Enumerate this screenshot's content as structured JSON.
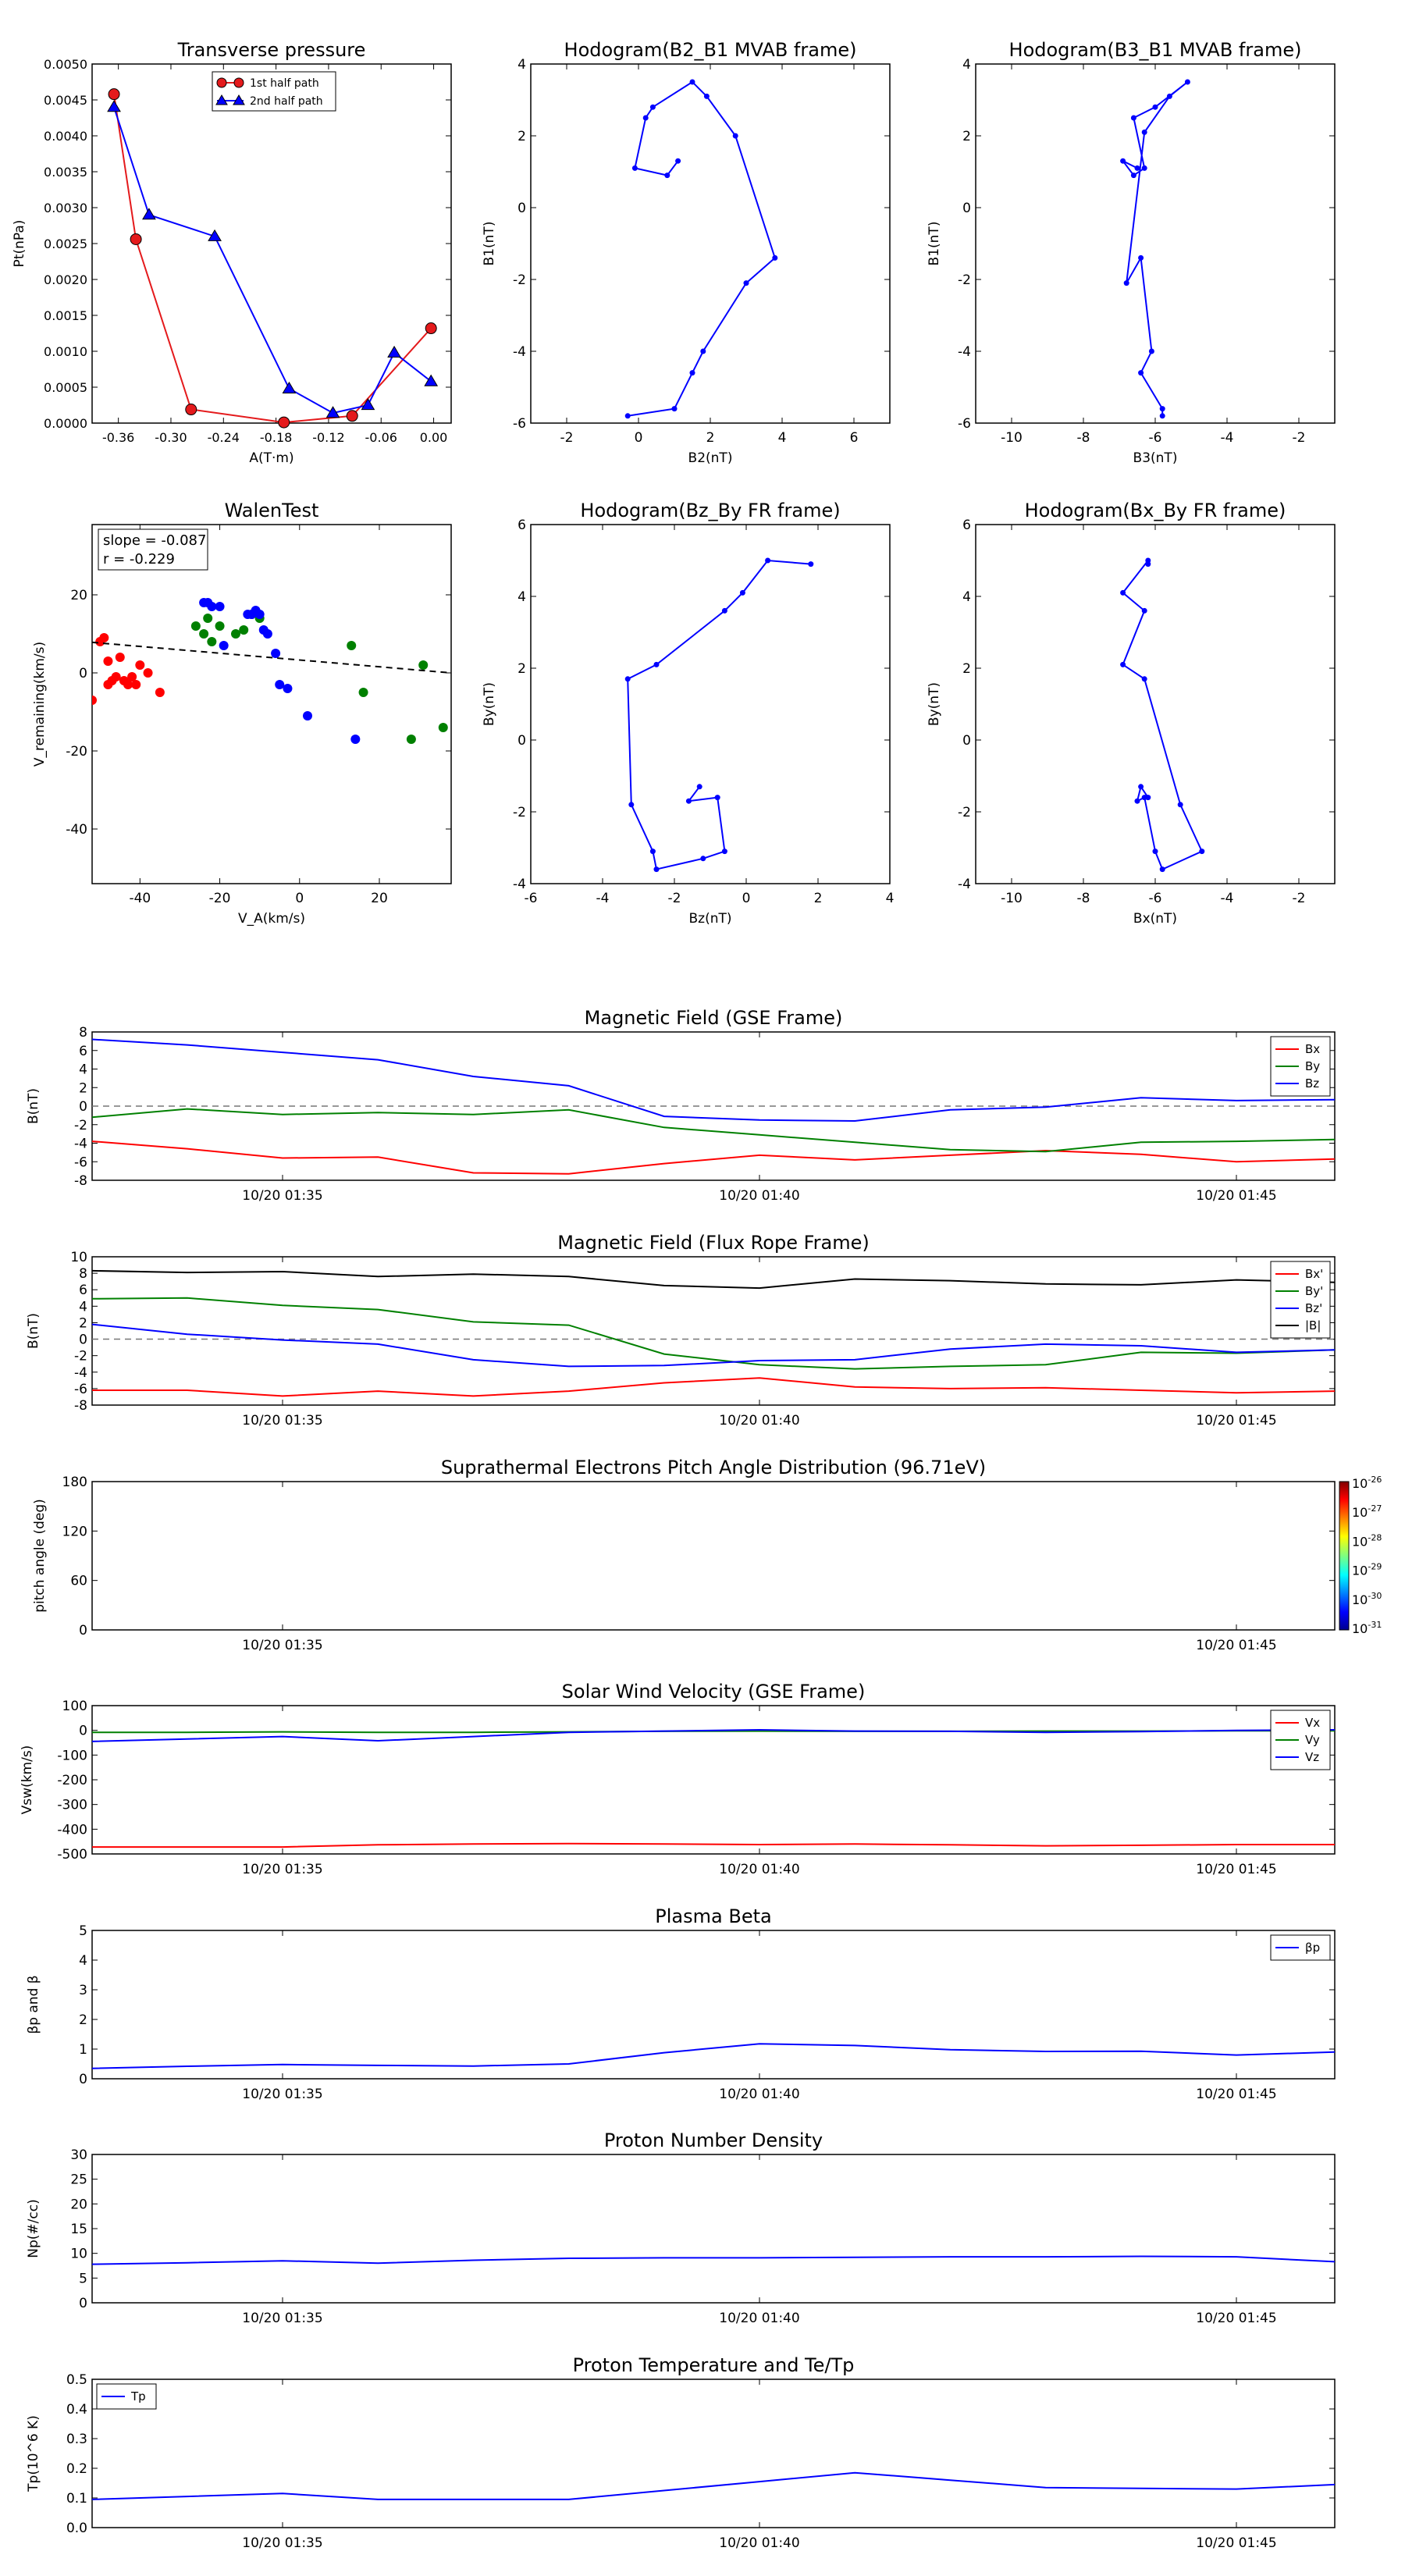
{
  "chart_data": [
    {
      "type": "line",
      "title": "Transverse pressure",
      "xlabel": "A(T·m)",
      "ylabel": "Pt(nPa)",
      "xlim": [
        -0.39,
        0.02
      ],
      "ylim": [
        0,
        0.005
      ],
      "xticks": [
        -0.36,
        -0.3,
        -0.24,
        -0.18,
        -0.12,
        -0.06,
        0.0
      ],
      "xtick_labels": [
        "-0.36",
        "-0.30",
        "-0.24",
        "-0.18",
        "-0.12",
        "-0.06",
        "0.00"
      ],
      "yticks": [
        0,
        0.0005,
        0.001,
        0.0015,
        0.002,
        0.0025,
        0.003,
        0.0035,
        0.004,
        0.0045,
        0.005
      ],
      "ytick_labels": [
        "0.0000",
        "0.0005",
        "0.0010",
        "0.0015",
        "0.0020",
        "0.0025",
        "0.0030",
        "0.0035",
        "0.0040",
        "0.0045",
        "0.0050"
      ],
      "legend": "top-center",
      "series": [
        {
          "name": "1st half path",
          "color": "#e41a1c",
          "marker": "circle",
          "x": [
            -0.003,
            -0.093,
            -0.171,
            -0.277,
            -0.34,
            -0.365
          ],
          "y": [
            0.00132,
            0.0001,
            1e-05,
            0.00019,
            0.00256,
            0.00458
          ]
        },
        {
          "name": "2nd half path",
          "color": "#0000ff",
          "marker": "triangle",
          "x": [
            -0.365,
            -0.325,
            -0.25,
            -0.165,
            -0.115,
            -0.075,
            -0.045,
            -0.003
          ],
          "y": [
            0.0044,
            0.0029,
            0.0026,
            0.00048,
            0.00014,
            0.00025,
            0.00098,
            0.00058
          ]
        }
      ]
    },
    {
      "type": "line",
      "title": "Hodogram(B2_B1 MVAB frame)",
      "xlabel": "B2(nT)",
      "ylabel": "B1(nT)",
      "xlim": [
        -3,
        7
      ],
      "ylim": [
        -6,
        4
      ],
      "xticks": [
        -2,
        0,
        2,
        4,
        6
      ],
      "yticks": [
        -6,
        -4,
        -2,
        0,
        2,
        4
      ],
      "series": [
        {
          "color": "#0000ff",
          "x": [
            -0.3,
            1.0,
            1.5,
            1.8,
            3.0,
            3.8,
            2.7,
            1.9,
            1.5,
            0.4,
            0.2,
            -0.1,
            0.8,
            1.1
          ],
          "y": [
            -5.8,
            -5.6,
            -4.6,
            -4.0,
            -2.1,
            -1.4,
            2.0,
            3.1,
            3.5,
            2.8,
            2.5,
            1.1,
            0.9,
            1.3
          ]
        }
      ]
    },
    {
      "type": "line",
      "title": "Hodogram(B3_B1 MVAB frame)",
      "xlabel": "B3(nT)",
      "ylabel": "B1(nT)",
      "xlim": [
        -11,
        -1
      ],
      "ylim": [
        -6,
        4
      ],
      "xticks": [
        -10,
        -8,
        -6,
        -4,
        -2
      ],
      "yticks": [
        -6,
        -4,
        -2,
        0,
        2,
        4
      ],
      "series": [
        {
          "color": "#0000ff",
          "x": [
            -5.8,
            -5.8,
            -6.4,
            -6.1,
            -6.4,
            -6.8,
            -6.3,
            -5.6,
            -5.1,
            -6.0,
            -6.6,
            -6.3,
            -6.6,
            -6.9,
            -6.5
          ],
          "y": [
            -5.8,
            -5.6,
            -4.6,
            -4.0,
            -1.4,
            -2.1,
            2.1,
            3.1,
            3.5,
            2.8,
            2.5,
            1.1,
            0.9,
            1.3,
            1.1
          ]
        }
      ]
    },
    {
      "type": "scatter",
      "title": "WalenTest",
      "xlabel": "V_A(km/s)",
      "ylabel": "V_remaining(km/s)",
      "xlim": [
        -52,
        38
      ],
      "ylim": [
        -54,
        38
      ],
      "xticks": [
        -40,
        -20,
        0,
        20
      ],
      "yticks": [
        -40,
        -20,
        0,
        20
      ],
      "annotation": [
        "slope = -0.087",
        "r = -0.229"
      ],
      "fit_line": {
        "slope": -0.087,
        "intercept": 3.3,
        "x": [
          -52,
          38
        ],
        "style": "dashed"
      },
      "series": [
        {
          "color": "#ff0000",
          "x": [
            -52,
            -50,
            -49,
            -48,
            -48,
            -47,
            -46,
            -45,
            -44,
            -43,
            -42,
            -41,
            -40,
            -38,
            -35
          ],
          "y": [
            -7,
            8,
            9,
            3,
            -3,
            -2,
            -1,
            4,
            -2,
            -3,
            -1,
            -3,
            2,
            0,
            -5
          ]
        },
        {
          "color": "#008000",
          "x": [
            -26,
            -24,
            -23,
            -22,
            -20,
            -16,
            -14,
            -12,
            -10,
            13,
            16,
            31,
            28,
            36
          ],
          "y": [
            12,
            10,
            14,
            8,
            12,
            10,
            11,
            15,
            14,
            7,
            -5,
            2,
            -17,
            -14
          ]
        },
        {
          "color": "#0000ff",
          "x": [
            -24,
            -23,
            -22,
            -20,
            -19,
            -13,
            -12,
            -11,
            -10,
            -9,
            -8,
            -6,
            -5,
            -3,
            2,
            14
          ],
          "y": [
            18,
            18,
            17,
            17,
            7,
            15,
            15,
            16,
            15,
            11,
            10,
            5,
            -3,
            -4,
            -11,
            -17
          ]
        }
      ]
    },
    {
      "type": "line",
      "title": "Hodogram(Bz_By FR frame)",
      "xlabel": "Bz(nT)",
      "ylabel": "By(nT)",
      "xlim": [
        -6,
        4
      ],
      "ylim": [
        -4,
        6
      ],
      "xticks": [
        -6,
        -4,
        -2,
        0,
        2,
        4
      ],
      "yticks": [
        -4,
        -2,
        0,
        2,
        4,
        6
      ],
      "series": [
        {
          "color": "#0000ff",
          "x": [
            1.8,
            0.6,
            -0.1,
            -0.6,
            -2.5,
            -3.3,
            -3.2,
            -2.6,
            -2.5,
            -1.2,
            -0.6,
            -0.8,
            -1.6,
            -1.3
          ],
          "y": [
            4.9,
            5.0,
            4.1,
            3.6,
            2.1,
            1.7,
            -1.8,
            -3.1,
            -3.6,
            -3.3,
            -3.1,
            -1.6,
            -1.7,
            -1.3
          ]
        }
      ]
    },
    {
      "type": "line",
      "title": "Hodogram(Bx_By FR frame)",
      "xlabel": "Bx(nT)",
      "ylabel": "By(nT)",
      "xlim": [
        -11,
        -1
      ],
      "ylim": [
        -4,
        6
      ],
      "xticks": [
        -10,
        -8,
        -6,
        -4,
        -2
      ],
      "yticks": [
        -4,
        -2,
        0,
        2,
        4,
        6
      ],
      "series": [
        {
          "color": "#0000ff",
          "x": [
            -6.2,
            -6.2,
            -6.9,
            -6.3,
            -6.9,
            -6.3,
            -5.3,
            -4.7,
            -5.8,
            -6.0,
            -6.3,
            -6.5,
            -6.4,
            -6.2
          ],
          "y": [
            4.9,
            5.0,
            4.1,
            3.6,
            2.1,
            1.7,
            -1.8,
            -3.1,
            -3.6,
            -3.1,
            -1.6,
            -1.7,
            -1.3,
            -1.6
          ]
        }
      ]
    },
    {
      "type": "line",
      "title": "Magnetic Field (GSE Frame)",
      "ylabel": "B(nT)",
      "ylim": [
        -8,
        8
      ],
      "yticks": [
        -8,
        -6,
        -4,
        -2,
        0,
        2,
        4,
        6,
        8
      ],
      "x_times": [
        "01:33",
        "01:34",
        "01:35",
        "01:36",
        "01:37",
        "01:38",
        "01:39",
        "01:40",
        "01:41",
        "01:42",
        "01:43",
        "01:44",
        "01:45",
        "01:46"
      ],
      "xtick_labels": [
        "10/20 01:35",
        "10/20 01:40",
        "10/20 01:45"
      ],
      "zero_line": true,
      "legend": "top-right",
      "series": [
        {
          "name": "Bx",
          "color": "#ff0000",
          "values": [
            -3.8,
            -4.6,
            -5.6,
            -5.5,
            -7.2,
            -7.3,
            -6.2,
            -5.3,
            -5.8,
            -5.3,
            -4.8,
            -5.2,
            -6.0,
            -5.7
          ]
        },
        {
          "name": "By",
          "color": "#008000",
          "values": [
            -1.2,
            -0.3,
            -0.9,
            -0.7,
            -0.9,
            -0.4,
            -2.3,
            -3.1,
            -3.9,
            -4.7,
            -4.9,
            -3.9,
            -3.8,
            -3.6
          ]
        },
        {
          "name": "Bz",
          "color": "#0000ff",
          "values": [
            7.2,
            6.6,
            5.8,
            5.0,
            3.2,
            2.2,
            -1.1,
            -1.5,
            -1.6,
            -0.4,
            -0.1,
            0.9,
            0.6,
            0.7
          ]
        }
      ]
    },
    {
      "type": "line",
      "title": "Magnetic Field (Flux Rope Frame)",
      "ylabel": "B(nT)",
      "ylim": [
        -8,
        10
      ],
      "yticks": [
        -8,
        -6,
        -4,
        -2,
        0,
        2,
        4,
        6,
        8,
        10
      ],
      "x_times": [
        "01:33",
        "01:34",
        "01:35",
        "01:36",
        "01:37",
        "01:38",
        "01:39",
        "01:40",
        "01:41",
        "01:42",
        "01:43",
        "01:44",
        "01:45",
        "01:46"
      ],
      "xtick_labels": [
        "10/20 01:35",
        "10/20 01:40",
        "10/20 01:45"
      ],
      "zero_line": true,
      "legend": "top-right",
      "series": [
        {
          "name": "Bx'",
          "color": "#ff0000",
          "values": [
            -6.2,
            -6.2,
            -6.9,
            -6.3,
            -6.9,
            -6.3,
            -5.3,
            -4.7,
            -5.8,
            -6.0,
            -5.9,
            -6.2,
            -6.5,
            -6.3
          ]
        },
        {
          "name": "By'",
          "color": "#008000",
          "values": [
            4.9,
            5.0,
            4.1,
            3.6,
            2.1,
            1.7,
            -1.8,
            -3.1,
            -3.6,
            -3.3,
            -3.1,
            -1.6,
            -1.7,
            -1.3
          ]
        },
        {
          "name": "Bz'",
          "color": "#0000ff",
          "values": [
            1.8,
            0.6,
            -0.1,
            -0.6,
            -2.5,
            -3.3,
            -3.2,
            -2.6,
            -2.5,
            -1.2,
            -0.6,
            -0.8,
            -1.6,
            -1.3
          ]
        },
        {
          "name": "|B|",
          "color": "#000000",
          "values": [
            8.3,
            8.1,
            8.2,
            7.6,
            7.9,
            7.6,
            6.5,
            6.2,
            7.3,
            7.1,
            6.7,
            6.6,
            7.2,
            6.9
          ]
        }
      ]
    },
    {
      "type": "heatmap",
      "title": "Suprathermal Electrons Pitch Angle Distribution (96.71eV)",
      "ylabel": "pitch angle (deg)",
      "ylim": [
        0,
        180
      ],
      "yticks": [
        0,
        60,
        120,
        180
      ],
      "xtick_labels": [
        "10/20 01:35",
        "10/20 01:45"
      ],
      "values": [],
      "colorbar": {
        "base": "10",
        "exponents": [
          "-26",
          "-27",
          "-28",
          "-29",
          "-30",
          "-31"
        ]
      }
    },
    {
      "type": "line",
      "title": "Solar Wind Velocity (GSE Frame)",
      "ylabel": "Vsw(km/s)",
      "ylim": [
        -500,
        100
      ],
      "yticks": [
        -500,
        -400,
        -300,
        -200,
        -100,
        0,
        100
      ],
      "x_times": [
        "01:33",
        "01:34",
        "01:35",
        "01:36",
        "01:37",
        "01:38",
        "01:39",
        "01:40",
        "01:41",
        "01:42",
        "01:43",
        "01:44",
        "01:45",
        "01:46"
      ],
      "xtick_labels": [
        "10/20 01:35",
        "10/20 01:40",
        "10/20 01:45"
      ],
      "legend": "top-right",
      "series": [
        {
          "name": "Vx",
          "color": "#ff0000",
          "values": [
            -472,
            -472,
            -472,
            -463,
            -460,
            -458,
            -460,
            -462,
            -460,
            -463,
            -467,
            -465,
            -462,
            -462
          ]
        },
        {
          "name": "Vy",
          "color": "#008000",
          "values": [
            -8,
            -8,
            -6,
            -8,
            -8,
            -6,
            -4,
            -3,
            -4,
            -4,
            -3,
            -3,
            -2,
            -2
          ]
        },
        {
          "name": "Vz",
          "color": "#0000ff",
          "values": [
            -45,
            -35,
            -25,
            -42,
            -25,
            -8,
            -3,
            2,
            -3,
            -4,
            -8,
            -5,
            0,
            2
          ]
        }
      ]
    },
    {
      "type": "line",
      "title": "Plasma Beta",
      "ylabel": "βp and β",
      "ylim": [
        0,
        5
      ],
      "yticks": [
        0,
        1,
        2,
        3,
        4,
        5
      ],
      "x_times": [
        "01:33",
        "01:34",
        "01:35",
        "01:36",
        "01:37",
        "01:38",
        "01:39",
        "01:40",
        "01:41",
        "01:42",
        "01:43",
        "01:44",
        "01:45",
        "01:46"
      ],
      "xtick_labels": [
        "10/20 01:35",
        "10/20 01:40",
        "10/20 01:45"
      ],
      "legend": "top-right",
      "series": [
        {
          "name": "βp",
          "color": "#0000ff",
          "values": [
            0.35,
            0.42,
            0.48,
            0.45,
            0.43,
            0.5,
            0.88,
            1.18,
            1.12,
            0.98,
            0.92,
            0.93,
            0.8,
            0.9
          ]
        }
      ]
    },
    {
      "type": "line",
      "title": "Proton Number Density",
      "ylabel": "Np(#/cc)",
      "ylim": [
        0,
        30
      ],
      "yticks": [
        0,
        5,
        10,
        15,
        20,
        25,
        30
      ],
      "x_times": [
        "01:33",
        "01:34",
        "01:35",
        "01:36",
        "01:37",
        "01:38",
        "01:39",
        "01:40",
        "01:41",
        "01:42",
        "01:43",
        "01:44",
        "01:45",
        "01:46"
      ],
      "xtick_labels": [
        "10/20 01:35",
        "10/20 01:40",
        "10/20 01:45"
      ],
      "series": [
        {
          "color": "#0000ff",
          "values": [
            7.8,
            8.1,
            8.5,
            8.0,
            8.6,
            9.0,
            9.1,
            9.1,
            9.2,
            9.3,
            9.3,
            9.4,
            9.3,
            8.3
          ]
        }
      ]
    },
    {
      "type": "line",
      "title": "Proton Temperature and Te/Tp",
      "ylabel": "Tp(10^6 K)",
      "ylim": [
        0,
        0.5
      ],
      "yticks": [
        0,
        0.1,
        0.2,
        0.3,
        0.4,
        0.5
      ],
      "ytick_labels": [
        "0.0",
        "0.1",
        "0.2",
        "0.3",
        "0.4",
        "0.5"
      ],
      "x_times": [
        "01:33",
        "01:34",
        "01:35",
        "01:36",
        "01:37",
        "01:38",
        "01:39",
        "01:40",
        "01:41",
        "01:42",
        "01:43",
        "01:44",
        "01:45",
        "01:46"
      ],
      "xtick_labels": [
        "10/20 01:35",
        "10/20 01:40",
        "10/20 01:45"
      ],
      "legend": "top-left",
      "series": [
        {
          "name": "Tp",
          "color": "#0000ff",
          "values": [
            0.095,
            0.105,
            0.115,
            0.095,
            0.095,
            0.095,
            0.125,
            0.155,
            0.185,
            0.16,
            0.135,
            0.132,
            0.13,
            0.145
          ]
        }
      ]
    }
  ]
}
